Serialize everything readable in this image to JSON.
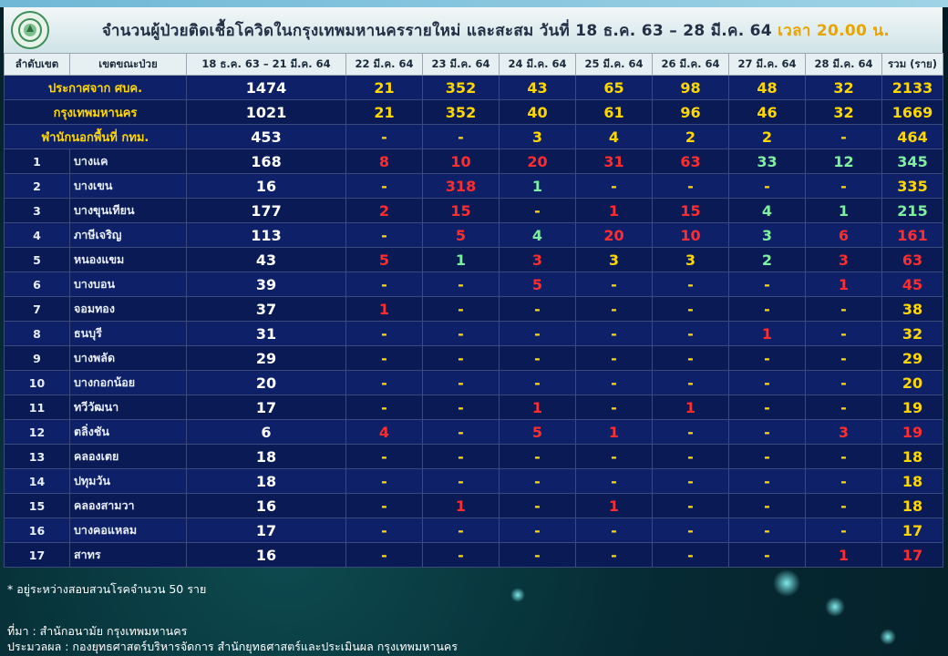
{
  "header": {
    "title_main": "จำนวนผู้ป่วยติดเชื้อโควิดในกรุงเทพมหานครรายใหม่ และสะสม วันที่ 18 ธ.ค. 63 – 28 มี.ค. 64",
    "title_time": "เวลา 20.00 น."
  },
  "columns": [
    "ลำดับเขต",
    "เขตขณะป่วย",
    "18 ธ.ค. 63 – 21 มี.ค. 64",
    "22 มี.ค. 64",
    "23 มี.ค. 64",
    "24 มี.ค. 64",
    "25 มี.ค. 64",
    "26 มี.ค. 64",
    "27 มี.ค. 64",
    "28 มี.ค. 64",
    "รวม (ราย)"
  ],
  "summary_rows": [
    {
      "label": "ประกาศจาก ศบค.",
      "values": [
        "1474",
        "21",
        "352",
        "43",
        "65",
        "98",
        "48",
        "32",
        "2133"
      ]
    },
    {
      "label": "กรุงเทพมหานคร",
      "values": [
        "1021",
        "21",
        "352",
        "40",
        "61",
        "96",
        "46",
        "32",
        "1669"
      ]
    },
    {
      "label": "พำนักนอกพื้นที่ กทม.",
      "values": [
        "453",
        "-",
        "-",
        "3",
        "4",
        "2",
        "2",
        "-",
        "464"
      ]
    }
  ],
  "district_rows": [
    {
      "rank": "1",
      "name": "บางแค",
      "base": "168",
      "days": [
        "8",
        "10",
        "20",
        "31",
        "63",
        "33",
        "12"
      ],
      "colors": [
        "red",
        "red",
        "red",
        "red",
        "red",
        "green",
        "green"
      ],
      "total": "345",
      "total_color": "green"
    },
    {
      "rank": "2",
      "name": "บางเขน",
      "base": "16",
      "days": [
        "-",
        "318",
        "1",
        "-",
        "-",
        "-",
        "-"
      ],
      "colors": [
        "dash",
        "red",
        "green",
        "dash",
        "dash",
        "dash",
        "dash"
      ],
      "total": "335",
      "total_color": "yellow"
    },
    {
      "rank": "3",
      "name": "บางขุนเทียน",
      "base": "177",
      "days": [
        "2",
        "15",
        "-",
        "1",
        "15",
        "4",
        "1"
      ],
      "colors": [
        "red",
        "red",
        "dash",
        "red",
        "red",
        "green",
        "green"
      ],
      "total": "215",
      "total_color": "green"
    },
    {
      "rank": "4",
      "name": "ภาษีเจริญ",
      "base": "113",
      "days": [
        "-",
        "5",
        "4",
        "20",
        "10",
        "3",
        "6"
      ],
      "colors": [
        "dash",
        "red",
        "green",
        "red",
        "red",
        "green",
        "red"
      ],
      "total": "161",
      "total_color": "red"
    },
    {
      "rank": "5",
      "name": "หนองแขม",
      "base": "43",
      "days": [
        "5",
        "1",
        "3",
        "3",
        "3",
        "2",
        "3"
      ],
      "colors": [
        "red",
        "green",
        "red",
        "yellow",
        "yellow",
        "green",
        "red"
      ],
      "total": "63",
      "total_color": "red"
    },
    {
      "rank": "6",
      "name": "บางบอน",
      "base": "39",
      "days": [
        "-",
        "-",
        "5",
        "-",
        "-",
        "-",
        "1"
      ],
      "colors": [
        "dash",
        "dash",
        "red",
        "dash",
        "dash",
        "dash",
        "red"
      ],
      "total": "45",
      "total_color": "red"
    },
    {
      "rank": "7",
      "name": "จอมทอง",
      "base": "37",
      "days": [
        "1",
        "-",
        "-",
        "-",
        "-",
        "-",
        "-"
      ],
      "colors": [
        "red",
        "dash",
        "dash",
        "dash",
        "dash",
        "dash",
        "dash"
      ],
      "total": "38",
      "total_color": "yellow"
    },
    {
      "rank": "8",
      "name": "ธนบุรี",
      "base": "31",
      "days": [
        "-",
        "-",
        "-",
        "-",
        "-",
        "1",
        "-"
      ],
      "colors": [
        "dash",
        "dash",
        "dash",
        "dash",
        "dash",
        "red",
        "dash"
      ],
      "total": "32",
      "total_color": "yellow"
    },
    {
      "rank": "9",
      "name": "บางพลัด",
      "base": "29",
      "days": [
        "-",
        "-",
        "-",
        "-",
        "-",
        "-",
        "-"
      ],
      "colors": [
        "dash",
        "dash",
        "dash",
        "dash",
        "dash",
        "dash",
        "dash"
      ],
      "total": "29",
      "total_color": "yellow"
    },
    {
      "rank": "10",
      "name": "บางกอกน้อย",
      "base": "20",
      "days": [
        "-",
        "-",
        "-",
        "-",
        "-",
        "-",
        "-"
      ],
      "colors": [
        "dash",
        "dash",
        "dash",
        "dash",
        "dash",
        "dash",
        "dash"
      ],
      "total": "20",
      "total_color": "yellow"
    },
    {
      "rank": "11",
      "name": "ทวีวัฒนา",
      "base": "17",
      "days": [
        "-",
        "-",
        "1",
        "-",
        "1",
        "-",
        "-"
      ],
      "colors": [
        "dash",
        "dash",
        "red",
        "dash",
        "red",
        "dash",
        "dash"
      ],
      "total": "19",
      "total_color": "yellow"
    },
    {
      "rank": "12",
      "name": "ตลิ่งชัน",
      "base": "6",
      "days": [
        "4",
        "-",
        "5",
        "1",
        "-",
        "-",
        "3"
      ],
      "colors": [
        "red",
        "dash",
        "red",
        "red",
        "dash",
        "dash",
        "red"
      ],
      "total": "19",
      "total_color": "red"
    },
    {
      "rank": "13",
      "name": "คลองเตย",
      "base": "18",
      "days": [
        "-",
        "-",
        "-",
        "-",
        "-",
        "-",
        "-"
      ],
      "colors": [
        "dash",
        "dash",
        "dash",
        "dash",
        "dash",
        "dash",
        "dash"
      ],
      "total": "18",
      "total_color": "yellow"
    },
    {
      "rank": "14",
      "name": "ปทุมวัน",
      "base": "18",
      "days": [
        "-",
        "-",
        "-",
        "-",
        "-",
        "-",
        "-"
      ],
      "colors": [
        "dash",
        "dash",
        "dash",
        "dash",
        "dash",
        "dash",
        "dash"
      ],
      "total": "18",
      "total_color": "yellow"
    },
    {
      "rank": "15",
      "name": "คลองสามวา",
      "base": "16",
      "days": [
        "-",
        "1",
        "-",
        "1",
        "-",
        "-",
        "-"
      ],
      "colors": [
        "dash",
        "red",
        "dash",
        "red",
        "dash",
        "dash",
        "dash"
      ],
      "total": "18",
      "total_color": "yellow"
    },
    {
      "rank": "16",
      "name": "บางคอแหลม",
      "base": "17",
      "days": [
        "-",
        "-",
        "-",
        "-",
        "-",
        "-",
        "-"
      ],
      "colors": [
        "dash",
        "dash",
        "dash",
        "dash",
        "dash",
        "dash",
        "dash"
      ],
      "total": "17",
      "total_color": "yellow"
    },
    {
      "rank": "17",
      "name": "สาทร",
      "base": "16",
      "days": [
        "-",
        "-",
        "-",
        "-",
        "-",
        "-",
        "1"
      ],
      "colors": [
        "dash",
        "dash",
        "dash",
        "dash",
        "dash",
        "dash",
        "red"
      ],
      "total": "17",
      "total_color": "red"
    }
  ],
  "footer": {
    "note": "* อยู่ระหว่างสอบสวนโรคจำนวน 50 ราย",
    "source": "ที่มา : สำนักอนามัย กรุงเทพมหานคร",
    "processed": "ประมวลผล : กองยุทธศาสตร์บริหารจัดการ สำนักยุทธศาสตร์และประเมินผล กรุงเทพมหานคร"
  }
}
